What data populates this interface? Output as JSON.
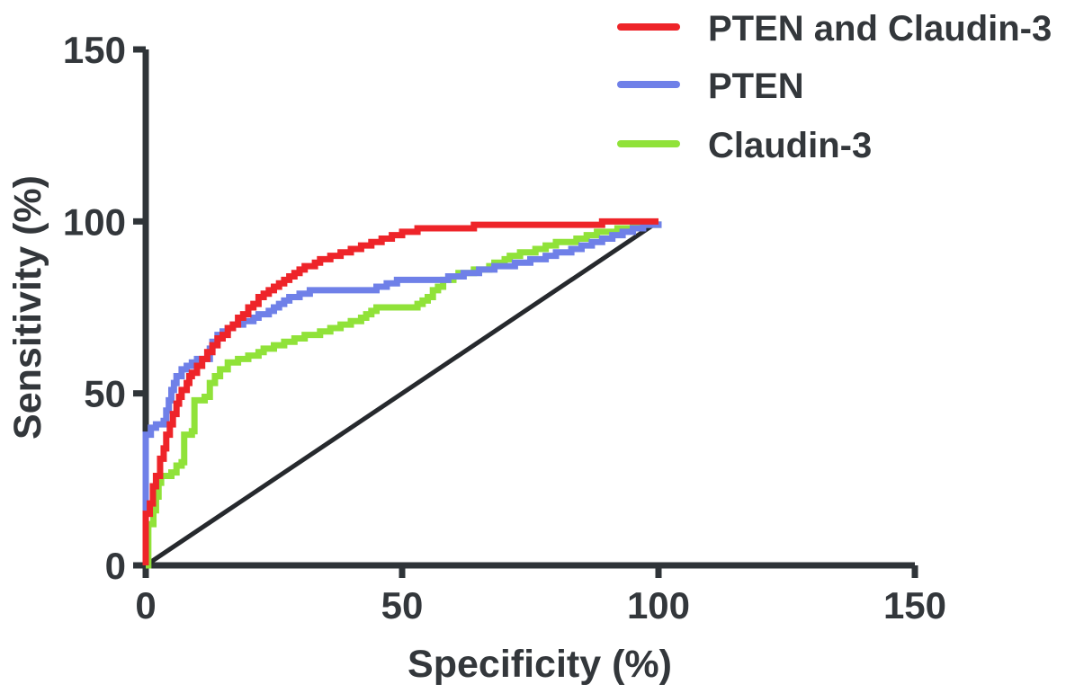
{
  "chart_data": {
    "type": "line",
    "subtype": "roc-step-curves",
    "title": "",
    "xlabel": "Specificity (%)",
    "ylabel": "Sensitivity (%)",
    "xlim": [
      0,
      150
    ],
    "ylim": [
      0,
      150
    ],
    "x_ticks": [
      0,
      50,
      100,
      150
    ],
    "y_ticks": [
      0,
      50,
      100,
      150
    ],
    "grid": false,
    "legend_position": "top-right",
    "axis_color": "#2f3438",
    "text_color": "#33373b",
    "background_color": "#ffffff",
    "reference_line": {
      "name": "chance-diagonal",
      "from": [
        0,
        0
      ],
      "to": [
        100,
        100
      ],
      "color": "#26292d"
    },
    "series": [
      {
        "name": "PTEN and Claudin-3",
        "color": "#ee2429",
        "points": [
          [
            0,
            0
          ],
          [
            0,
            15
          ],
          [
            0.8,
            18
          ],
          [
            1.4,
            23
          ],
          [
            2,
            26
          ],
          [
            2.8,
            31
          ],
          [
            3.5,
            34
          ],
          [
            4,
            38
          ],
          [
            4.7,
            41
          ],
          [
            5.3,
            44
          ],
          [
            6,
            47
          ],
          [
            6.5,
            49
          ],
          [
            7,
            51
          ],
          [
            8,
            53
          ],
          [
            8.5,
            55
          ],
          [
            9,
            56
          ],
          [
            10,
            58
          ],
          [
            11,
            60
          ],
          [
            12,
            62
          ],
          [
            13,
            64
          ],
          [
            14,
            66
          ],
          [
            15,
            67
          ],
          [
            16,
            69
          ],
          [
            17,
            70
          ],
          [
            18,
            72
          ],
          [
            19,
            73
          ],
          [
            20,
            75
          ],
          [
            21,
            76
          ],
          [
            22,
            78
          ],
          [
            23,
            79
          ],
          [
            24,
            80
          ],
          [
            25,
            81
          ],
          [
            26,
            82
          ],
          [
            27,
            83
          ],
          [
            28,
            84
          ],
          [
            29,
            85
          ],
          [
            30,
            86
          ],
          [
            31,
            87
          ],
          [
            33,
            88
          ],
          [
            34,
            89
          ],
          [
            36,
            90
          ],
          [
            38,
            91
          ],
          [
            40,
            92
          ],
          [
            42,
            93
          ],
          [
            44,
            94
          ],
          [
            46,
            95
          ],
          [
            48,
            96
          ],
          [
            50,
            97
          ],
          [
            53,
            98
          ],
          [
            64,
            99
          ],
          [
            88,
            99
          ],
          [
            89,
            100
          ],
          [
            100,
            100
          ]
        ]
      },
      {
        "name": "PTEN",
        "color": "#6f80e8",
        "points": [
          [
            0,
            0
          ],
          [
            0,
            38
          ],
          [
            1,
            40
          ],
          [
            2,
            41
          ],
          [
            3.5,
            42
          ],
          [
            4,
            45
          ],
          [
            4.5,
            48
          ],
          [
            5,
            51
          ],
          [
            5.5,
            53
          ],
          [
            6,
            55
          ],
          [
            7,
            57
          ],
          [
            8,
            58
          ],
          [
            9,
            59
          ],
          [
            10,
            60
          ],
          [
            12,
            60
          ],
          [
            12.5,
            63
          ],
          [
            13,
            65
          ],
          [
            14,
            67
          ],
          [
            15,
            68
          ],
          [
            16,
            69
          ],
          [
            17,
            70
          ],
          [
            19,
            71
          ],
          [
            21,
            72
          ],
          [
            22,
            73
          ],
          [
            24,
            74
          ],
          [
            25,
            75
          ],
          [
            26,
            76
          ],
          [
            27,
            77
          ],
          [
            28,
            78
          ],
          [
            30,
            79
          ],
          [
            32,
            80
          ],
          [
            44,
            80
          ],
          [
            45,
            81
          ],
          [
            47,
            82
          ],
          [
            49,
            83
          ],
          [
            59,
            84
          ],
          [
            62,
            85
          ],
          [
            65,
            86
          ],
          [
            68,
            87
          ],
          [
            72,
            88
          ],
          [
            75,
            89
          ],
          [
            78,
            90
          ],
          [
            80,
            91
          ],
          [
            83,
            92
          ],
          [
            85,
            93
          ],
          [
            87,
            94
          ],
          [
            89,
            95
          ],
          [
            91,
            96
          ],
          [
            93,
            97
          ],
          [
            95,
            98
          ],
          [
            97,
            99
          ],
          [
            100,
            100
          ]
        ]
      },
      {
        "name": "Claudin-3",
        "color": "#90e239",
        "points": [
          [
            0,
            0
          ],
          [
            0.5,
            12
          ],
          [
            1.5,
            16
          ],
          [
            2,
            20
          ],
          [
            2.5,
            24
          ],
          [
            3,
            26
          ],
          [
            5,
            27
          ],
          [
            6,
            29
          ],
          [
            7,
            30
          ],
          [
            7.5,
            38
          ],
          [
            9,
            39
          ],
          [
            9.5,
            48
          ],
          [
            11.5,
            49
          ],
          [
            12.5,
            53
          ],
          [
            13.5,
            55
          ],
          [
            14.5,
            57
          ],
          [
            16,
            59
          ],
          [
            18,
            60
          ],
          [
            20,
            61
          ],
          [
            22,
            62
          ],
          [
            23,
            63
          ],
          [
            25,
            64
          ],
          [
            27,
            65
          ],
          [
            29,
            66
          ],
          [
            31,
            67
          ],
          [
            34,
            68
          ],
          [
            36,
            69
          ],
          [
            38,
            70
          ],
          [
            40,
            71
          ],
          [
            42,
            72
          ],
          [
            43,
            73
          ],
          [
            44,
            74
          ],
          [
            45,
            75
          ],
          [
            53,
            76
          ],
          [
            54,
            77
          ],
          [
            55,
            78
          ],
          [
            56,
            80
          ],
          [
            57,
            81
          ],
          [
            58,
            83
          ],
          [
            60,
            84
          ],
          [
            61,
            85
          ],
          [
            64,
            86
          ],
          [
            67,
            87
          ],
          [
            68,
            88
          ],
          [
            70,
            89
          ],
          [
            71,
            90
          ],
          [
            73,
            91
          ],
          [
            76,
            92
          ],
          [
            78,
            93
          ],
          [
            80,
            94
          ],
          [
            84,
            95
          ],
          [
            86,
            96
          ],
          [
            88,
            97
          ],
          [
            92,
            98
          ],
          [
            95,
            99
          ],
          [
            100,
            100
          ]
        ]
      }
    ]
  }
}
